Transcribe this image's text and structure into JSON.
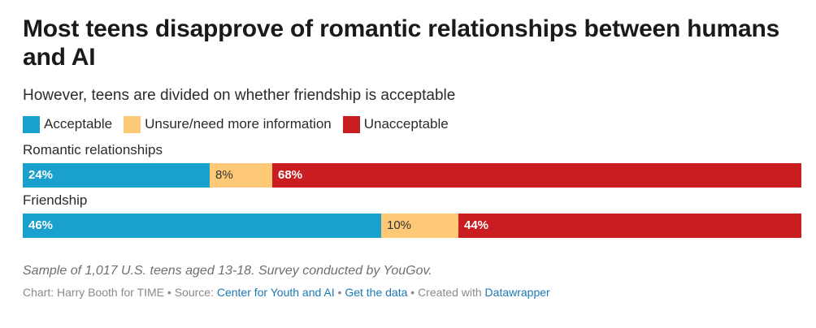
{
  "chart_data": {
    "type": "bar",
    "orientation": "horizontal",
    "stacked": true,
    "title": "Most teens disapprove of romantic relationships between humans and AI",
    "subtitle": "However, teens are divided on whether friendship is acceptable",
    "categories": [
      "Romantic relationships",
      "Friendship"
    ],
    "series": [
      {
        "name": "Acceptable",
        "values": [
          24,
          46
        ],
        "color": "#1aa0cd",
        "text_color": "#ffffff",
        "bold": true
      },
      {
        "name": "Unsure/need more information",
        "values": [
          8,
          10
        ],
        "color": "#fec977",
        "text_color": "#333333",
        "bold": false
      },
      {
        "name": "Unacceptable",
        "values": [
          68,
          44
        ],
        "color": "#c91d22",
        "text_color": "#ffffff",
        "bold": true
      }
    ],
    "value_suffix": "%",
    "xlim": [
      0,
      100
    ],
    "legend_position": "top-left",
    "grid": false
  },
  "notes": "Sample of 1,017 U.S. teens aged 13-18. Survey conducted by YouGov.",
  "credits": {
    "chart_by": "Chart: Harry Booth for TIME",
    "separator": " • ",
    "source_prefix": "Source: ",
    "source_link": "Center for Youth and AI",
    "get_data": "Get the data",
    "created_with_prefix": "Created with ",
    "created_with_link": "Datawrapper"
  }
}
